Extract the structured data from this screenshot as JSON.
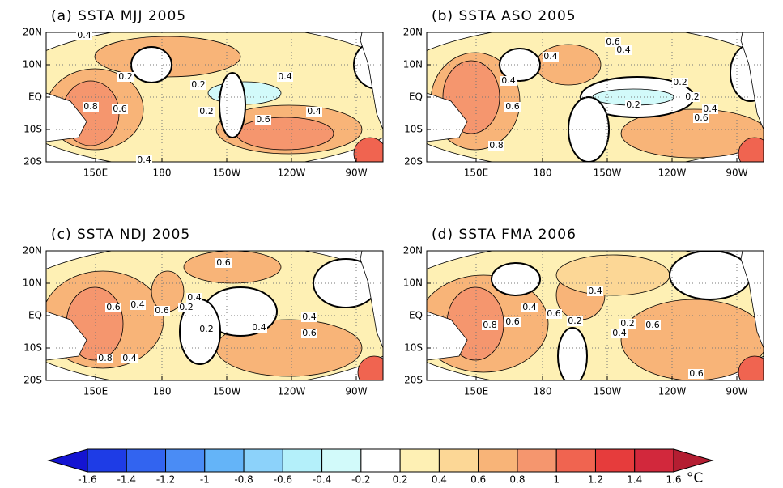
{
  "panels": [
    {
      "title": "(a) SSTA MJJ 2005",
      "contour_labels": [
        "0.4",
        "0.2",
        "0.2",
        "0.4",
        "0.8",
        "0.6",
        "0.2",
        "0.4",
        "0.6",
        "0.4"
      ]
    },
    {
      "title": "(b) SSTA ASO 2005",
      "contour_labels": [
        "0.6",
        "0.4",
        "0.4",
        "0.4",
        "0.2",
        "0.2",
        "0.6",
        "0.2",
        "0.4",
        "0.6",
        "0.8"
      ]
    },
    {
      "title": "(c) SSTA NDJ 2005",
      "contour_labels": [
        "0.6",
        "0.4",
        "0.6",
        "0.4",
        "0.6",
        "0.2",
        "0.4",
        "0.2",
        "0.4",
        "0.6",
        "0.8",
        "0.4"
      ]
    },
    {
      "title": "(d) SSTA FMA 2006",
      "contour_labels": [
        "0.4",
        "0.4",
        "0.6",
        "0.8",
        "0.6",
        "0.2",
        "0.2",
        "0.6",
        "0.4",
        "0.6"
      ]
    }
  ],
  "lat_labels": [
    "20N",
    "10N",
    "EQ",
    "10S",
    "20S"
  ],
  "lon_labels": [
    "150E",
    "180",
    "150W",
    "120W",
    "90W"
  ],
  "colorbar": {
    "labels": [
      "-1.6",
      "-1.4",
      "-1.2",
      "-1",
      "-0.8",
      "-0.6",
      "-0.4",
      "-0.2",
      "0.2",
      "0.4",
      "0.6",
      "0.8",
      "1",
      "1.2",
      "1.4",
      "1.6"
    ],
    "unit": "°C",
    "colors": [
      "#1414d2",
      "#1e3ce6",
      "#3264f0",
      "#4a8cf5",
      "#64b4f8",
      "#8cd2fa",
      "#b4f0fa",
      "#d2fafa",
      "#ffffff",
      "#fef0b4",
      "#fcd796",
      "#f8b478",
      "#f5966e",
      "#f06450",
      "#e63c3c",
      "#d2283c",
      "#b41e32"
    ]
  }
}
